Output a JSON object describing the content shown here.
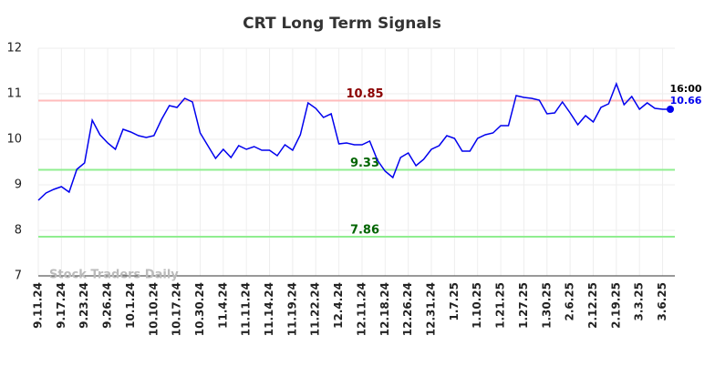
{
  "chart_data": {
    "type": "line",
    "title": "CRT Long Term Signals",
    "categories": [
      "9.11.24",
      null,
      null,
      "9.17.24",
      null,
      null,
      "9.23.24",
      null,
      null,
      "9.26.24",
      null,
      null,
      "10.1.24",
      null,
      null,
      "10.10.24",
      null,
      null,
      "10.17.24",
      null,
      null,
      "10.30.24",
      null,
      null,
      "11.4.24",
      null,
      null,
      "11.11.24",
      null,
      null,
      "11.14.24",
      null,
      null,
      "11.19.24",
      null,
      null,
      "11.22.24",
      null,
      null,
      "12.4.24",
      null,
      null,
      "12.11.24",
      null,
      null,
      "12.18.24",
      null,
      null,
      "12.26.24",
      null,
      null,
      "12.31.24",
      null,
      null,
      "1.7.25",
      null,
      null,
      "1.10.25",
      null,
      null,
      "1.21.25",
      null,
      null,
      "1.27.25",
      null,
      null,
      "1.30.25",
      null,
      null,
      "2.6.25",
      null,
      null,
      "2.12.25",
      null,
      null,
      "2.19.25",
      null,
      null,
      "3.3.25",
      null,
      null,
      "3.6.25",
      null
    ],
    "values": [
      8.66,
      8.82,
      8.9,
      8.96,
      8.84,
      9.34,
      9.48,
      10.42,
      10.1,
      9.92,
      9.78,
      10.22,
      10.16,
      10.08,
      10.04,
      10.08,
      10.44,
      10.74,
      10.7,
      10.9,
      10.82,
      10.14,
      9.86,
      9.58,
      9.78,
      9.6,
      9.86,
      9.78,
      9.84,
      9.76,
      9.76,
      9.64,
      9.88,
      9.76,
      10.1,
      10.8,
      10.68,
      10.48,
      10.56,
      9.9,
      9.92,
      9.88,
      9.88,
      9.96,
      9.54,
      9.3,
      9.16,
      9.6,
      9.7,
      9.42,
      9.56,
      9.78,
      9.86,
      10.08,
      10.02,
      9.74,
      9.74,
      10.02,
      10.1,
      10.14,
      10.3,
      10.3,
      10.96,
      10.92,
      10.9,
      10.86,
      10.56,
      10.58,
      10.82,
      10.58,
      10.32,
      10.52,
      10.38,
      10.7,
      10.78,
      11.22,
      10.76,
      10.94,
      10.66,
      10.8,
      10.68,
      10.66,
      10.66
    ],
    "color": "#0000ee",
    "ylim": [
      7,
      12
    ],
    "yticks": [
      7,
      8,
      9,
      10,
      11,
      12
    ],
    "grid": true,
    "hlines": [
      {
        "value": 10.85,
        "color": "#ffbbbb",
        "text_color": "#8b0000"
      },
      {
        "value": 9.33,
        "color": "#90ee90",
        "text_color": "#006400"
      },
      {
        "value": 7.86,
        "color": "#90ee90",
        "text_color": "#006400"
      }
    ],
    "last_time": "16:00",
    "watermark": "Stock Traders Daily"
  }
}
